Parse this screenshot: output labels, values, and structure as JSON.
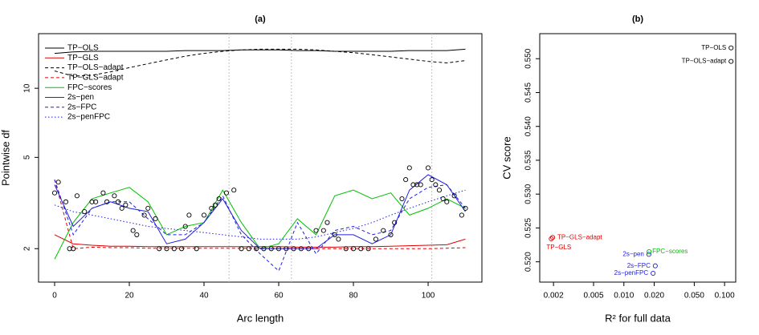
{
  "chart_data": [
    {
      "type": "line",
      "title": "(a)",
      "x_label": "Arc length",
      "y_label": "Pointwise df",
      "log_y": true,
      "xlim": [
        -4.3,
        114.4
      ],
      "ylim": [
        1.43,
        17.3
      ],
      "xticks": [
        0,
        20,
        40,
        60,
        80,
        100
      ],
      "yticks": [
        2,
        5,
        10
      ],
      "vlines": [
        46.7,
        63.4,
        101
      ],
      "vline_color": "#c0c0c0",
      "legend": "top-left",
      "x": [
        0,
        5,
        10,
        15,
        20,
        25,
        30,
        35,
        40,
        45,
        50,
        55,
        60,
        65,
        70,
        75,
        80,
        85,
        90,
        95,
        100,
        105,
        110
      ],
      "series": [
        {
          "name": "TP−OLS",
          "color": "#000000",
          "dash": "solid",
          "values": [
            14.2,
            14.4,
            14.5,
            14.5,
            14.5,
            14.5,
            14.5,
            14.6,
            14.6,
            14.6,
            14.7,
            14.7,
            14.7,
            14.6,
            14.6,
            14.5,
            14.5,
            14.5,
            14.5,
            14.6,
            14.6,
            14.6,
            14.8
          ]
        },
        {
          "name": "TP−GLS",
          "color": "#e00000",
          "dash": "solid",
          "values": [
            2.3,
            2.1,
            2.07,
            2.05,
            2.05,
            2.04,
            2.04,
            2.04,
            2.04,
            2.04,
            2.04,
            2.04,
            2.04,
            2.03,
            2.03,
            2.03,
            2.04,
            2.04,
            2.05,
            2.06,
            2.07,
            2.08,
            2.2
          ]
        },
        {
          "name": "TP−OLS−adapt",
          "color": "#000000",
          "dash": "dashed",
          "values": [
            11.9,
            11.3,
            11.4,
            11.8,
            12.3,
            12.8,
            13.3,
            13.8,
            14.2,
            14.5,
            14.7,
            14.8,
            14.8,
            14.8,
            14.7,
            14.5,
            14.3,
            14,
            13.7,
            13.4,
            13.1,
            12.9,
            13.2
          ]
        },
        {
          "name": "TP−GLS−adapt",
          "color": "#e00000",
          "dash": "dashed",
          "values": [
            4,
            2,
            2.03,
            2.02,
            2.02,
            2.01,
            2.01,
            2.01,
            2.01,
            2.01,
            2.01,
            2.01,
            2,
            2,
            2,
            2,
            2,
            2,
            2,
            2,
            2,
            2.01,
            2.02
          ]
        },
        {
          "name": "FPC−scores",
          "color": "#00c000",
          "dash": "solid",
          "values": [
            1.8,
            2.6,
            3.3,
            3.5,
            3.7,
            3.2,
            2.3,
            2.5,
            2.6,
            3.6,
            2.6,
            2,
            2.1,
            2.7,
            2.3,
            3.4,
            3.6,
            3.3,
            3.5,
            2.8,
            3,
            3.3,
            3
          ]
        },
        {
          "name": "2s−pen",
          "color": "#2020e0",
          "dash": "solid",
          "values": [
            3.8,
            2.5,
            3,
            3.2,
            3,
            2.9,
            2.1,
            2.2,
            2.6,
            3.3,
            2.4,
            2,
            2,
            2,
            2,
            2.3,
            2.3,
            2.1,
            2.3,
            3.6,
            4.2,
            3.8,
            2.9
          ]
        },
        {
          "name": "2s−FPC",
          "color": "#2020e0",
          "dash": "dashed",
          "values": [
            4,
            2.3,
            3,
            3.2,
            3.2,
            2.7,
            2.3,
            2.3,
            2.6,
            3.4,
            2.3,
            1.9,
            1.6,
            2.6,
            1.9,
            2.4,
            2.5,
            2.3,
            2.4,
            3.3,
            3.7,
            3.8,
            3
          ]
        },
        {
          "name": "2s−penFPC",
          "color": "#2020e0",
          "dash": "dotted",
          "values": [
            3.1,
            2.9,
            2.8,
            2.7,
            2.6,
            2.5,
            2.45,
            2.4,
            2.35,
            2.3,
            2.25,
            2.2,
            2.2,
            2.2,
            2.25,
            2.35,
            2.45,
            2.6,
            2.8,
            3,
            3.2,
            3.4,
            3.6
          ]
        }
      ],
      "points": {
        "x": [
          0,
          1,
          3,
          4,
          5,
          6,
          8,
          10,
          11,
          13,
          14,
          16,
          17,
          18,
          19,
          21,
          22,
          24,
          25,
          27,
          28,
          30,
          32,
          34,
          35,
          36,
          38,
          40,
          42,
          43,
          44,
          46,
          48,
          50,
          52,
          54,
          56,
          58,
          60,
          62,
          64,
          66,
          68,
          70,
          72,
          73,
          75,
          76,
          78,
          80,
          82,
          84,
          86,
          88,
          90,
          91,
          93,
          94,
          95,
          96,
          97,
          98,
          100,
          101,
          102,
          103,
          104,
          105,
          107,
          109,
          110
        ],
        "y": [
          3.5,
          3.9,
          3.2,
          2,
          2,
          3.4,
          2.9,
          3.2,
          3.2,
          3.5,
          3.2,
          3.4,
          3.2,
          3,
          3.1,
          2.4,
          2.3,
          2.8,
          3,
          2.7,
          2,
          2,
          2,
          2,
          2.5,
          2.8,
          2,
          2.8,
          3,
          3.1,
          3.3,
          3.5,
          3.6,
          2,
          2,
          2,
          2,
          2,
          2,
          2,
          2,
          2,
          2,
          2.4,
          2.4,
          2.6,
          2.3,
          2.2,
          2,
          2,
          2,
          2,
          2.2,
          2.4,
          2.3,
          2.6,
          3.3,
          4,
          4.5,
          3.8,
          3.8,
          3.8,
          4.5,
          4,
          3.8,
          3.6,
          3.3,
          3.2,
          3.4,
          2.8,
          3
        ]
      }
    },
    {
      "type": "scatter",
      "title": "(b)",
      "x_label": "R² for full data",
      "y_label": "CV score",
      "log_x": true,
      "xlim": [
        0.00146,
        0.129
      ],
      "ylim": [
        0.517,
        0.5537
      ],
      "xticks": [
        0.002,
        0.005,
        {
          "value": 0.01,
          "label": "0.010"
        },
        {
          "value": 0.02,
          "label": "0.020"
        },
        {
          "value": 0.05,
          "label": "0.050"
        },
        {
          "value": 0.1,
          "label": "0.100"
        }
      ],
      "yticks": [
        {
          "value": 0.52,
          "label": "0.520"
        },
        0.525,
        {
          "value": 0.53,
          "label": "0.530"
        },
        0.535,
        {
          "value": 0.54,
          "label": "0.540"
        },
        0.545,
        {
          "value": 0.55,
          "label": "0.550"
        }
      ],
      "points": [
        {
          "label": "TP−OLS",
          "color": "#000000",
          "x": 0.116,
          "y": 0.5516
        },
        {
          "label": "TP−OLS−adapt",
          "color": "#000000",
          "x": 0.116,
          "y": 0.5496
        },
        {
          "label": "TP−GLS−adapt",
          "color": "#e00000",
          "x": 0.00196,
          "y": 0.5236
        },
        {
          "label": "TP−GLS",
          "color": "#e00000",
          "x": 0.0019,
          "y": 0.5234
        },
        {
          "label": "FPC−scores",
          "color": "#00c000",
          "x": 0.0178,
          "y": 0.5215
        },
        {
          "label": "2s−pen",
          "color": "#2020e0",
          "x": 0.0177,
          "y": 0.5211
        },
        {
          "label": "2s−FPC",
          "color": "#2020e0",
          "x": 0.0205,
          "y": 0.5194
        },
        {
          "label": "2s−penFPC",
          "color": "#2020e0",
          "x": 0.0195,
          "y": 0.5183
        }
      ]
    }
  ]
}
